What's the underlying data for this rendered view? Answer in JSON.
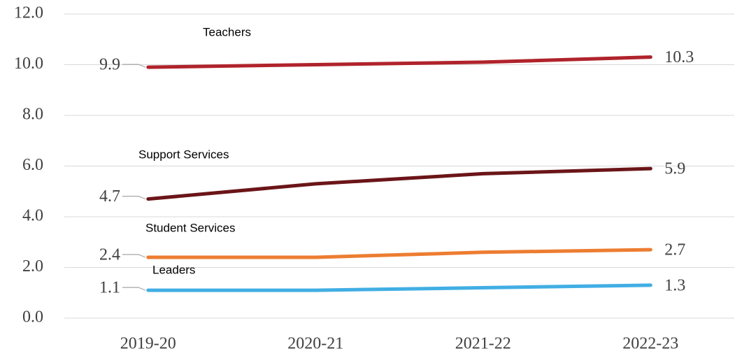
{
  "chart_data": {
    "type": "line",
    "categories": [
      "2019-20",
      "2020-21",
      "2021-22",
      "2022-23"
    ],
    "series": [
      {
        "name": "Teachers",
        "color": "#b0232b",
        "values": [
          9.9,
          10.0,
          10.1,
          10.3
        ]
      },
      {
        "name": "Support Services",
        "color": "#6b1518",
        "values": [
          4.7,
          5.3,
          5.7,
          5.9
        ]
      },
      {
        "name": "Student Services",
        "color": "#ed7d31",
        "values": [
          2.4,
          2.4,
          2.6,
          2.7
        ]
      },
      {
        "name": "Leaders",
        "color": "#41aee4",
        "values": [
          1.1,
          1.1,
          1.2,
          1.3
        ]
      }
    ],
    "ylim": [
      0,
      12
    ],
    "yticks": [
      {
        "value": 0,
        "label": "0.0"
      },
      {
        "value": 2,
        "label": "2.0"
      },
      {
        "value": 4,
        "label": "4.0"
      },
      {
        "value": 6,
        "label": "6.0"
      },
      {
        "value": 8,
        "label": "8.0"
      },
      {
        "value": 10,
        "label": "10.0"
      },
      {
        "value": 12,
        "label": "12.0"
      }
    ],
    "grid": true,
    "data_labels": "first_last"
  }
}
